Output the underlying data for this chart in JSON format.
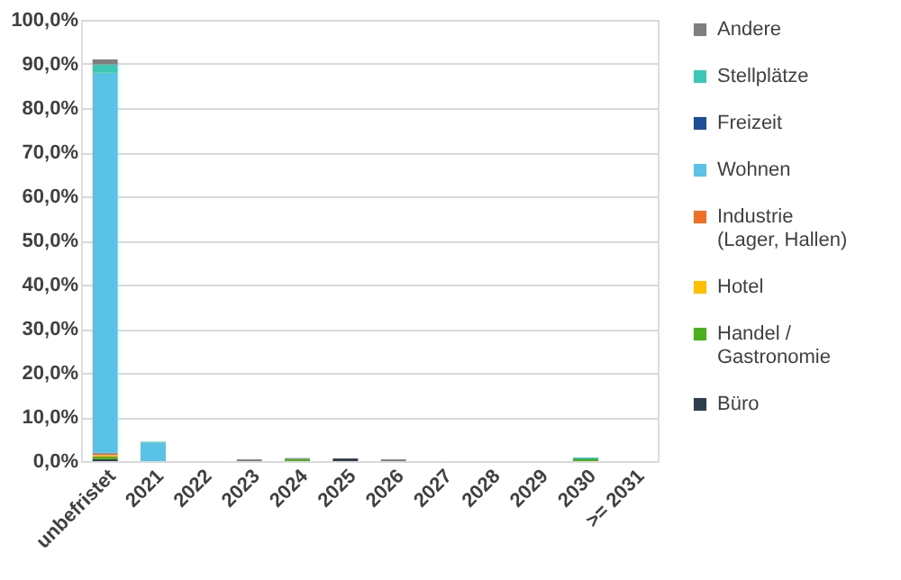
{
  "chart_data": {
    "type": "bar",
    "stacked": true,
    "categories": [
      "unbefristet",
      "2021",
      "2022",
      "2023",
      "2024",
      "2025",
      "2026",
      "2027",
      "2028",
      "2029",
      "2030",
      ">= 2031"
    ],
    "series": [
      {
        "name": "Büro",
        "color": "#2f3e4e",
        "values": [
          0.5,
          0,
          0,
          0,
          0,
          0.6,
          0,
          0,
          0,
          0,
          0,
          0
        ]
      },
      {
        "name": "Handel / Gastronomie",
        "color": "#4caf1c",
        "values": [
          0.6,
          0,
          0,
          0,
          0.5,
          0,
          0,
          0,
          0,
          0,
          0.6,
          0
        ]
      },
      {
        "name": "Hotel",
        "color": "#ffc000",
        "values": [
          0.3,
          0,
          0,
          0,
          0,
          0,
          0,
          0,
          0,
          0,
          0,
          0
        ]
      },
      {
        "name": "Industrie (Lager, Hallen)",
        "color": "#f07027",
        "values": [
          0.5,
          0,
          0,
          0,
          0,
          0,
          0,
          0,
          0,
          0,
          0,
          0
        ]
      },
      {
        "name": "Wohnen",
        "color": "#5bc2e7",
        "values": [
          86.1,
          4.2,
          0,
          0,
          0,
          0,
          0,
          0,
          0,
          0,
          0,
          0
        ]
      },
      {
        "name": "Freizeit",
        "color": "#1f4e99",
        "values": [
          0,
          0,
          0,
          0,
          0,
          0,
          0,
          0,
          0,
          0,
          0,
          0
        ]
      },
      {
        "name": "Stellplätze",
        "color": "#3cc8b4",
        "values": [
          2.0,
          0.2,
          0,
          0,
          0,
          0,
          0,
          0,
          0,
          0,
          0.2,
          0
        ]
      },
      {
        "name": "Andere",
        "color": "#7f7f7f",
        "values": [
          1.0,
          0,
          0,
          0.4,
          0.2,
          0,
          0.4,
          0,
          0,
          0,
          0,
          0
        ]
      }
    ],
    "ylim": [
      0,
      100
    ],
    "yticks": [
      {
        "value": 0,
        "label": "0,0%"
      },
      {
        "value": 10,
        "label": "10,0%"
      },
      {
        "value": 20,
        "label": "20,0%"
      },
      {
        "value": 30,
        "label": "30,0%"
      },
      {
        "value": 40,
        "label": "40,0%"
      },
      {
        "value": 50,
        "label": "50,0%"
      },
      {
        "value": 60,
        "label": "60,0%"
      },
      {
        "value": 70,
        "label": "70,0%"
      },
      {
        "value": 80,
        "label": "80,0%"
      },
      {
        "value": 90,
        "label": "90,0%"
      },
      {
        "value": 100,
        "label": "100,0%"
      }
    ],
    "grid": "y",
    "legend": "right"
  }
}
